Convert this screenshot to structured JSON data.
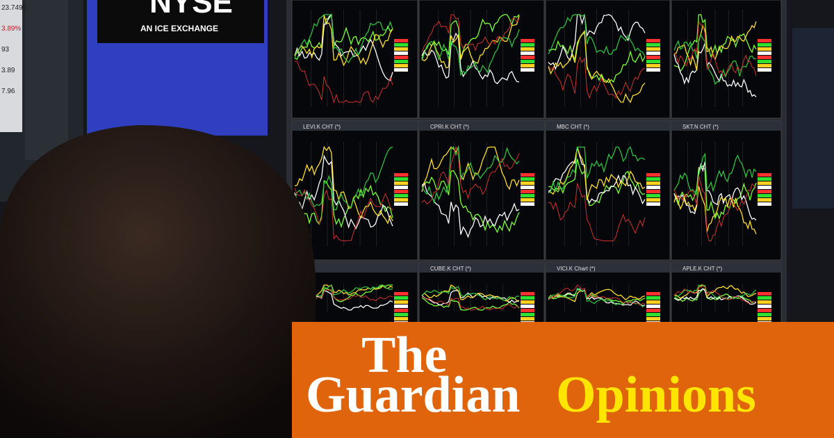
{
  "sign": {
    "logo": "NYSE",
    "tagline": "AN ICE EXCHANGE"
  },
  "side_screen": {
    "readings": [
      "23.7490",
      "3.89%",
      "93",
      "3.89",
      "7.96"
    ]
  },
  "panels": [
    {
      "title": "LEVI.K CHT (*)"
    },
    {
      "title": "CPRI.K CHT (*)"
    },
    {
      "title": "MBC CHT (*)"
    },
    {
      "title": "SKT.N CHT (*)"
    },
    {
      "title": "CUBE.K CHT (*)"
    },
    {
      "title": "VICI.K Chart (*)"
    },
    {
      "title": "APLE.K CHT (*)"
    }
  ],
  "branding": {
    "masthead_line1": "The",
    "masthead_line2": "Guardian",
    "section": "Opinions"
  }
}
